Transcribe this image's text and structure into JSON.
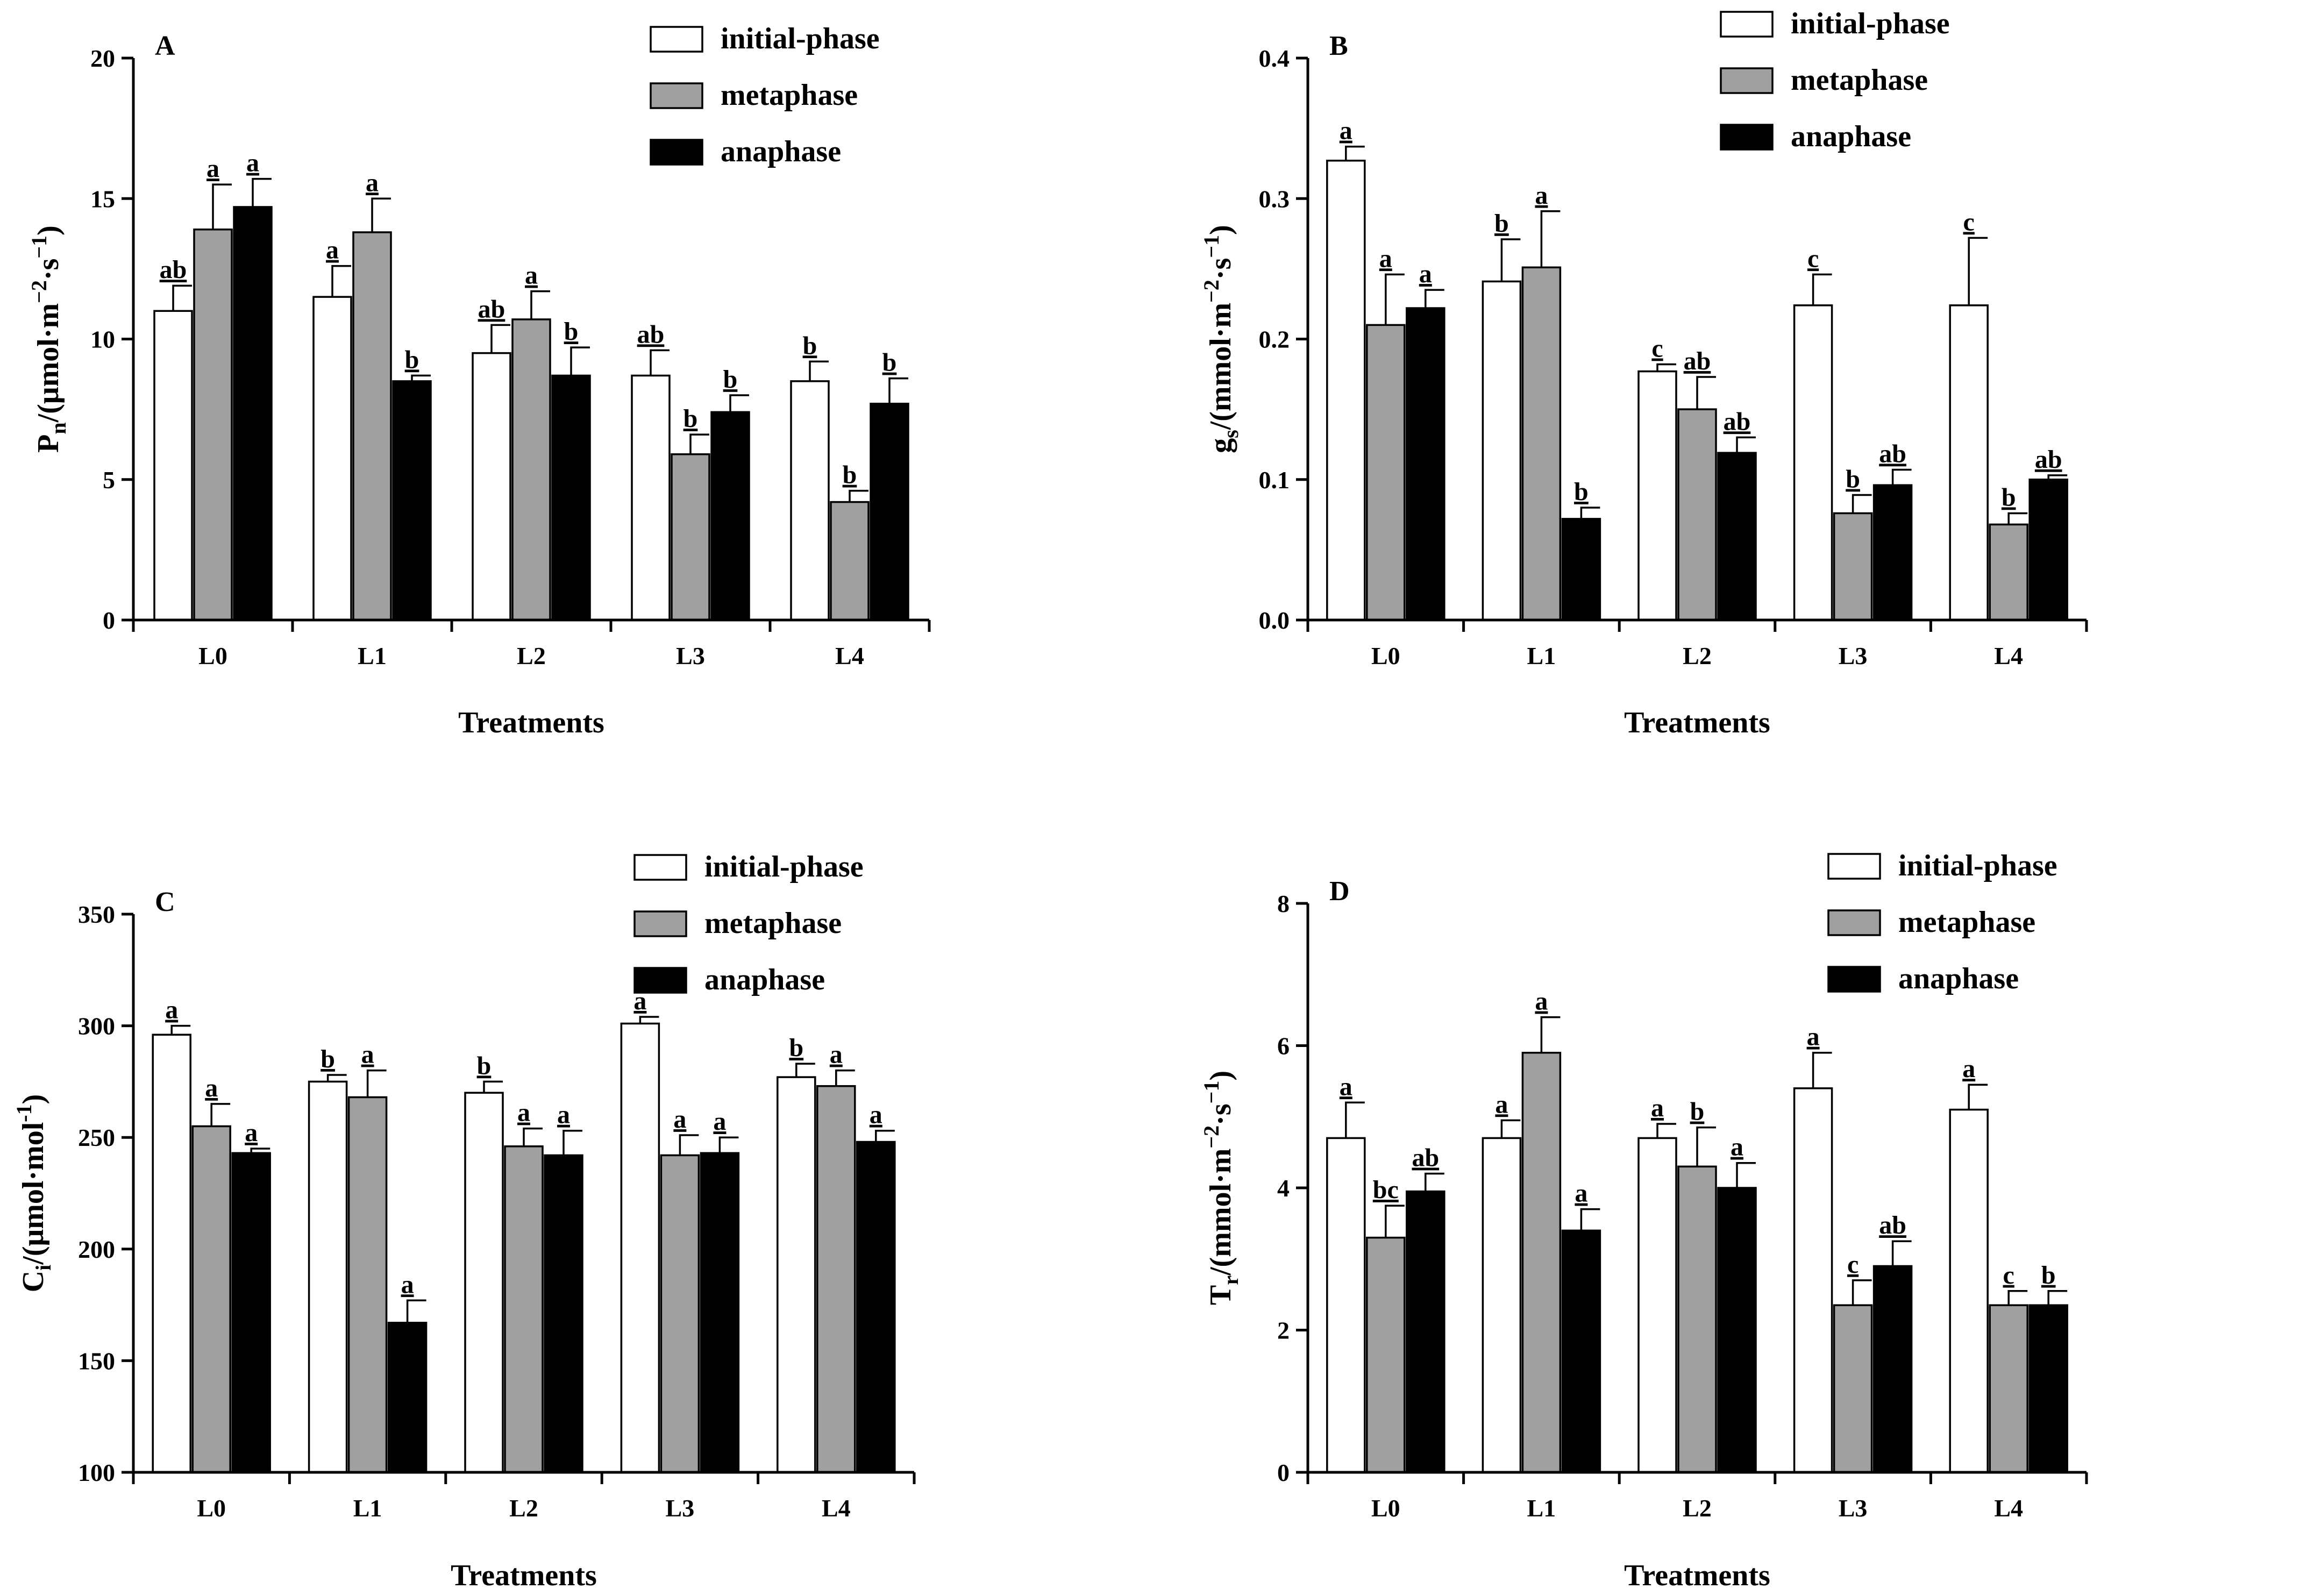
{
  "colors": {
    "initial-phase": "#ffffff",
    "metaphase": "#a0a0a0",
    "anaphase": "#000000"
  },
  "chart_data": [
    {
      "type": "bar",
      "panel": "A",
      "categories": [
        "L0",
        "L1",
        "L2",
        "L3",
        "L4"
      ],
      "xlabel": "Treatments",
      "ylabel_main": "P",
      "ylabel_sub": "n",
      "ylabel_rest": "/(μmol·m",
      "ylabel_sup1": "−2",
      "ylabel_mid": "·s",
      "ylabel_sup2": "−1",
      "ylabel_end": ")",
      "ylim": [
        0,
        20
      ],
      "yticks": [
        0,
        5,
        10,
        15,
        20
      ],
      "ytick_labels": [
        "0",
        "5",
        "10",
        "15",
        "20"
      ],
      "legend_position": "top-right",
      "series": [
        {
          "name": "initial-phase",
          "values": [
            11.0,
            11.5,
            9.5,
            8.7,
            8.5
          ],
          "errors": [
            0.9,
            1.1,
            1.0,
            0.9,
            0.7
          ],
          "letters": [
            "ab",
            "a",
            "ab",
            "ab",
            "b"
          ]
        },
        {
          "name": "metaphase",
          "values": [
            13.9,
            13.8,
            10.7,
            5.9,
            4.2
          ],
          "errors": [
            1.6,
            1.2,
            1.0,
            0.7,
            0.4
          ],
          "letters": [
            "a",
            "a",
            "a",
            "b",
            "b"
          ]
        },
        {
          "name": "anaphase",
          "values": [
            14.7,
            8.5,
            8.7,
            7.4,
            7.7
          ],
          "errors": [
            1.0,
            0.2,
            1.0,
            0.6,
            0.9
          ],
          "letters": [
            "a",
            "b",
            "b",
            "b",
            "b"
          ]
        }
      ]
    },
    {
      "type": "bar",
      "panel": "B",
      "categories": [
        "L0",
        "L1",
        "L2",
        "L3",
        "L4"
      ],
      "xlabel": "Treatments",
      "ylabel_main": "g",
      "ylabel_sub": "s",
      "ylabel_rest": "/(mmol·m",
      "ylabel_sup1": "−2",
      "ylabel_mid": "·s",
      "ylabel_sup2": "−1",
      "ylabel_end": ")",
      "ylim": [
        0,
        0.4
      ],
      "yticks": [
        0,
        0.1,
        0.2,
        0.3,
        0.4
      ],
      "ytick_labels": [
        "0.0",
        "0.1",
        "0.2",
        "0.3",
        "0.4"
      ],
      "legend_position": "top-right",
      "series": [
        {
          "name": "initial-phase",
          "values": [
            0.327,
            0.241,
            0.177,
            0.224,
            0.224
          ],
          "errors": [
            0.01,
            0.03,
            0.005,
            0.022,
            0.048
          ],
          "letters": [
            "a",
            "b",
            "c",
            "c",
            "c"
          ]
        },
        {
          "name": "metaphase",
          "values": [
            0.21,
            0.251,
            0.15,
            0.076,
            0.068
          ],
          "errors": [
            0.036,
            0.04,
            0.023,
            0.013,
            0.008
          ],
          "letters": [
            "a",
            "a",
            "ab",
            "b",
            "b"
          ]
        },
        {
          "name": "anaphase",
          "values": [
            0.222,
            0.072,
            0.119,
            0.096,
            0.1
          ],
          "errors": [
            0.013,
            0.008,
            0.011,
            0.011,
            0.003
          ],
          "letters": [
            "a",
            "b",
            "ab",
            "ab",
            "ab"
          ]
        }
      ]
    },
    {
      "type": "bar",
      "panel": "C",
      "categories": [
        "L0",
        "L1",
        "L2",
        "L3",
        "L4"
      ],
      "xlabel": "Treatments",
      "ylabel_main": "C",
      "ylabel_sub": "i",
      "ylabel_rest": "/(μmol·mol",
      "ylabel_sup1": "-1",
      "ylabel_mid": "",
      "ylabel_sup2": "",
      "ylabel_end": ")",
      "ylim": [
        100,
        350
      ],
      "yticks": [
        100,
        150,
        200,
        250,
        300,
        350
      ],
      "ytick_labels": [
        "100",
        "150",
        "200",
        "250",
        "300",
        "350"
      ],
      "legend_position": "top-right",
      "series": [
        {
          "name": "initial-phase",
          "values": [
            296,
            275,
            270,
            301,
            277
          ],
          "errors": [
            4,
            3,
            5,
            3,
            6
          ],
          "letters": [
            "a",
            "b",
            "b",
            "a",
            "b"
          ]
        },
        {
          "name": "metaphase",
          "values": [
            255,
            268,
            246,
            242,
            273
          ],
          "errors": [
            10,
            12,
            8,
            9,
            7
          ],
          "letters": [
            "a",
            "a",
            "a",
            "a",
            "a"
          ]
        },
        {
          "name": "anaphase",
          "values": [
            243,
            167,
            242,
            243,
            248
          ],
          "errors": [
            2,
            10,
            11,
            7,
            5
          ],
          "letters": [
            "a",
            "a",
            "a",
            "a",
            "a"
          ]
        }
      ]
    },
    {
      "type": "bar",
      "panel": "D",
      "categories": [
        "L0",
        "L1",
        "L2",
        "L3",
        "L4"
      ],
      "xlabel": "Treatments",
      "ylabel_main": "T",
      "ylabel_sub": "r",
      "ylabel_rest": "/(mmol·m",
      "ylabel_sup1": "−2",
      "ylabel_mid": "·s",
      "ylabel_sup2": "−1",
      "ylabel_end": ")",
      "ylim": [
        0,
        8
      ],
      "yticks": [
        0,
        2,
        4,
        6,
        8
      ],
      "ytick_labels": [
        "0",
        "2",
        "4",
        "6",
        "8"
      ],
      "legend_position": "top-right",
      "series": [
        {
          "name": "initial-phase",
          "values": [
            4.7,
            4.7,
            4.7,
            5.4,
            5.1
          ],
          "errors": [
            0.5,
            0.25,
            0.2,
            0.5,
            0.35
          ],
          "letters": [
            "a",
            "a",
            "a",
            "a",
            "a"
          ]
        },
        {
          "name": "metaphase",
          "values": [
            3.3,
            5.9,
            4.3,
            2.35,
            2.35
          ],
          "errors": [
            0.45,
            0.5,
            0.55,
            0.35,
            0.2
          ],
          "letters": [
            "bc",
            "a",
            "b",
            "c",
            "c"
          ]
        },
        {
          "name": "anaphase",
          "values": [
            3.95,
            3.4,
            4.0,
            2.9,
            2.35
          ],
          "errors": [
            0.25,
            0.3,
            0.35,
            0.35,
            0.2
          ],
          "letters": [
            "ab",
            "a",
            "a",
            "ab",
            "b"
          ]
        }
      ]
    }
  ]
}
